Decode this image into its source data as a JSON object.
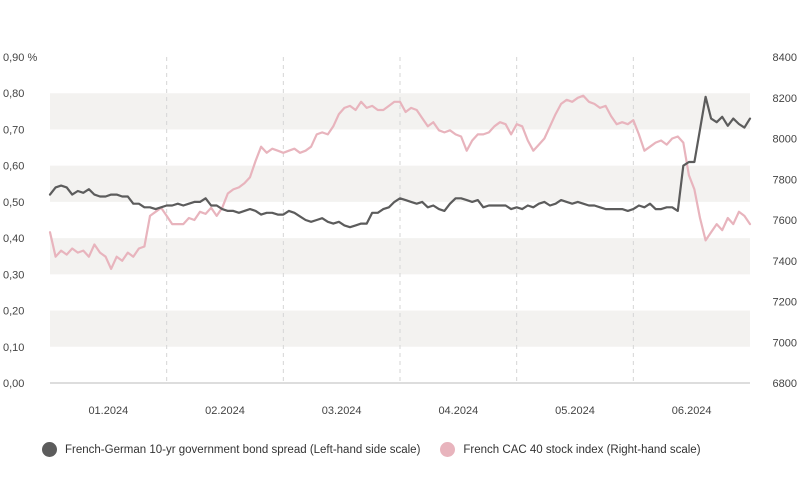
{
  "chart_data": {
    "type": "line",
    "title": "",
    "x_tick_labels": [
      "01.2024",
      "02.2024",
      "03.2024",
      "04.2024",
      "05.2024",
      "06.2024"
    ],
    "left_axis": {
      "ticks": [
        "0,00",
        "0,10",
        "0,20",
        "0,30",
        "0,40",
        "0,50",
        "0,60",
        "0,70",
        "0,80",
        "0,90 %"
      ],
      "ylim": [
        0,
        0.9
      ],
      "unit": "%"
    },
    "right_axis": {
      "ticks": [
        "6800",
        "7000",
        "7200",
        "7400",
        "7600",
        "7800",
        "8000",
        "8200",
        "8400"
      ],
      "ylim": [
        6800,
        8400
      ]
    },
    "grid": "alternating horizontal bands",
    "legend_position": "bottom",
    "series": [
      {
        "name": "French-German 10-yr government bond spread (Left-hand side scale)",
        "axis": "left",
        "color": "#5c5c5c",
        "values": [
          0.52,
          0.54,
          0.545,
          0.54,
          0.52,
          0.53,
          0.525,
          0.535,
          0.52,
          0.515,
          0.515,
          0.52,
          0.52,
          0.515,
          0.515,
          0.495,
          0.495,
          0.485,
          0.485,
          0.48,
          0.485,
          0.49,
          0.49,
          0.495,
          0.49,
          0.495,
          0.5,
          0.5,
          0.51,
          0.49,
          0.49,
          0.48,
          0.475,
          0.475,
          0.47,
          0.475,
          0.48,
          0.475,
          0.465,
          0.47,
          0.47,
          0.465,
          0.465,
          0.475,
          0.47,
          0.46,
          0.45,
          0.445,
          0.45,
          0.455,
          0.445,
          0.44,
          0.445,
          0.435,
          0.43,
          0.435,
          0.44,
          0.44,
          0.47,
          0.47,
          0.48,
          0.485,
          0.5,
          0.51,
          0.505,
          0.5,
          0.495,
          0.5,
          0.485,
          0.49,
          0.48,
          0.475,
          0.495,
          0.51,
          0.51,
          0.505,
          0.5,
          0.505,
          0.485,
          0.49,
          0.49,
          0.49,
          0.49,
          0.48,
          0.485,
          0.48,
          0.49,
          0.485,
          0.495,
          0.5,
          0.49,
          0.495,
          0.505,
          0.5,
          0.495,
          0.5,
          0.495,
          0.49,
          0.49,
          0.485,
          0.48,
          0.48,
          0.48,
          0.48,
          0.475,
          0.48,
          0.49,
          0.485,
          0.495,
          0.48,
          0.48,
          0.485,
          0.485,
          0.475,
          0.6,
          0.61,
          0.61,
          0.7,
          0.79,
          0.73,
          0.72,
          0.735,
          0.71,
          0.73,
          0.715,
          0.705,
          0.73
        ]
      },
      {
        "name": "French CAC 40 stock index (Right-hand scale)",
        "axis": "right",
        "color": "#e8b4bd",
        "values": [
          7540,
          7420,
          7450,
          7430,
          7460,
          7440,
          7450,
          7420,
          7480,
          7440,
          7420,
          7360,
          7420,
          7400,
          7440,
          7420,
          7460,
          7470,
          7620,
          7640,
          7660,
          7620,
          7580,
          7580,
          7580,
          7610,
          7600,
          7640,
          7630,
          7660,
          7620,
          7660,
          7730,
          7750,
          7760,
          7780,
          7810,
          7890,
          7960,
          7930,
          7950,
          7940,
          7930,
          7940,
          7950,
          7930,
          7940,
          7960,
          8020,
          8030,
          8020,
          8060,
          8120,
          8150,
          8160,
          8140,
          8180,
          8150,
          8160,
          8140,
          8140,
          8160,
          8180,
          8180,
          8130,
          8150,
          8140,
          8100,
          8060,
          8080,
          8040,
          8030,
          8040,
          8020,
          8010,
          7940,
          7990,
          8020,
          8020,
          8030,
          8060,
          8080,
          8070,
          8020,
          8070,
          8060,
          7990,
          7940,
          7970,
          8000,
          8060,
          8120,
          8170,
          8190,
          8180,
          8200,
          8210,
          8180,
          8170,
          8150,
          8160,
          8110,
          8070,
          8080,
          8070,
          8090,
          8020,
          7940,
          7960,
          7980,
          7990,
          7970,
          8000,
          8010,
          7980,
          7820,
          7750,
          7610,
          7500,
          7540,
          7580,
          7550,
          7610,
          7580,
          7640,
          7620,
          7580
        ]
      }
    ]
  },
  "legend": {
    "items": [
      {
        "label": "French-German 10-yr government bond spread (Left-hand side scale)",
        "color": "#5c5c5c"
      },
      {
        "label": "French CAC 40 stock index (Right-hand scale)",
        "color": "#e8b4bd"
      }
    ]
  }
}
